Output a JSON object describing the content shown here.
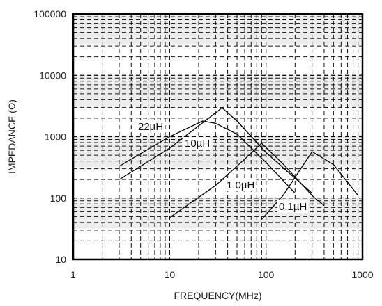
{
  "chart_data": {
    "type": "line",
    "title": "",
    "xlabel": "FREQUENCY(MHz)",
    "ylabel": "IMPEDANCE (Ω)",
    "xscale": "log",
    "yscale": "log",
    "xlim": [
      1,
      1000
    ],
    "ylim": [
      10,
      100000
    ],
    "x_ticks": [
      "1",
      "10",
      "100",
      "1000"
    ],
    "y_ticks": [
      "10",
      "100",
      "1000",
      "10000",
      "100000"
    ],
    "grid": true,
    "series": [
      {
        "name": "22µH",
        "points": [
          [
            3,
            330
          ],
          [
            10,
            1000
          ],
          [
            22,
            1800
          ],
          [
            30,
            1650
          ],
          [
            50,
            1100
          ],
          [
            100,
            380
          ],
          [
            200,
            120
          ]
        ]
      },
      {
        "name": "10µH",
        "points": [
          [
            3,
            200
          ],
          [
            10,
            650
          ],
          [
            20,
            1500
          ],
          [
            35,
            2950
          ],
          [
            50,
            1800
          ],
          [
            100,
            550
          ],
          [
            300,
            120
          ]
        ]
      },
      {
        "name": "1.0µH",
        "points": [
          [
            10,
            48
          ],
          [
            30,
            160
          ],
          [
            60,
            430
          ],
          [
            90,
            780
          ],
          [
            150,
            360
          ],
          [
            300,
            110
          ],
          [
            400,
            75
          ]
        ]
      },
      {
        "name": "0.1µH",
        "points": [
          [
            90,
            45
          ],
          [
            150,
            110
          ],
          [
            300,
            570
          ],
          [
            500,
            350
          ],
          [
            900,
            110
          ]
        ]
      }
    ]
  }
}
